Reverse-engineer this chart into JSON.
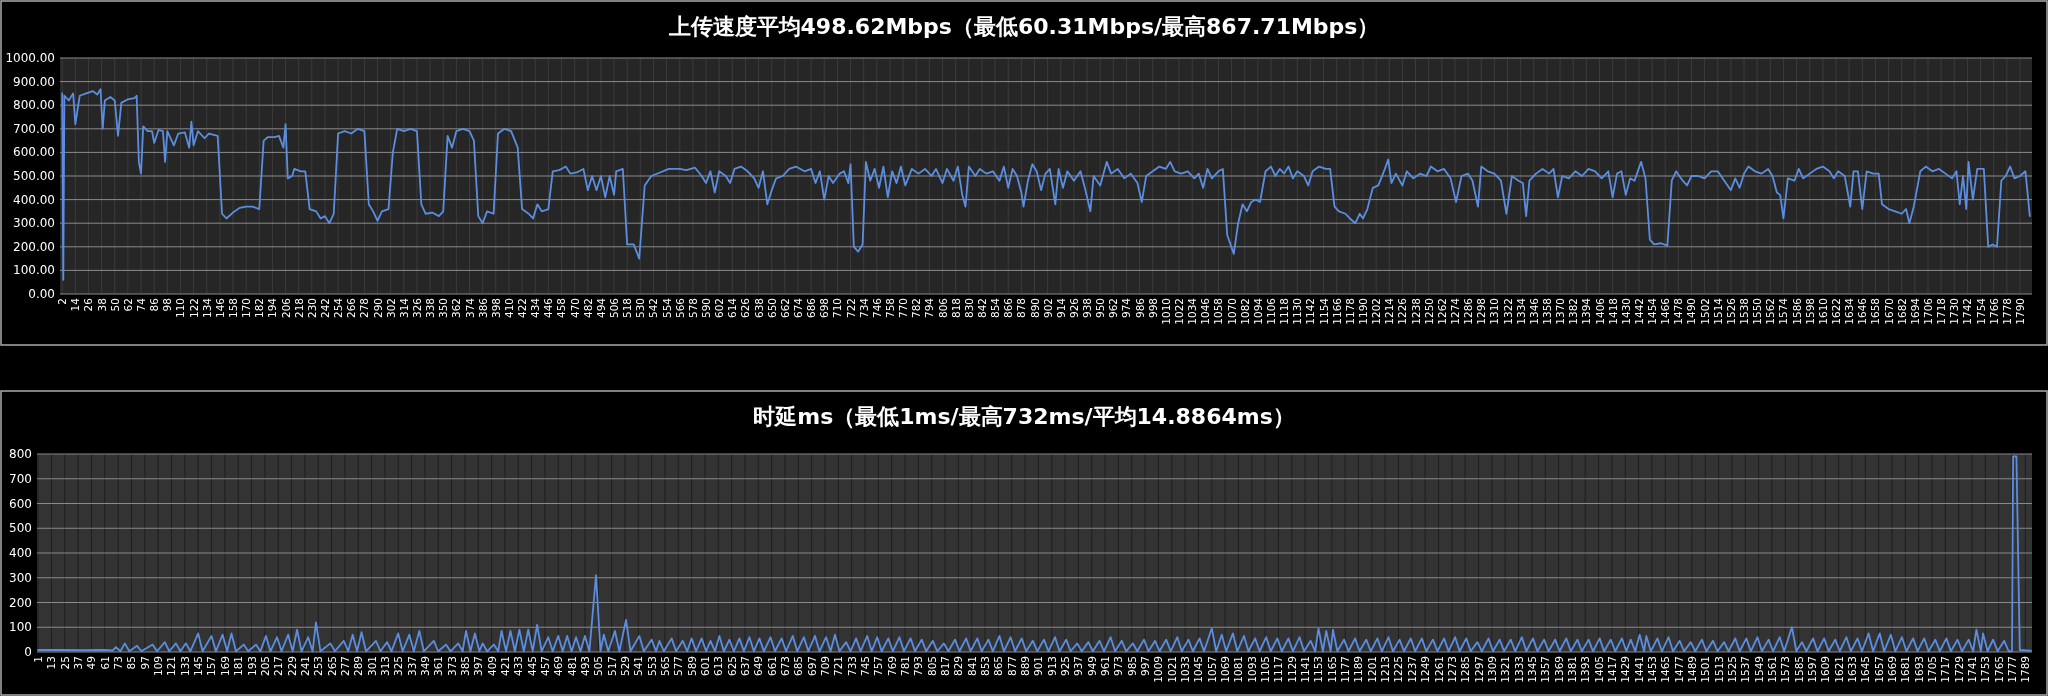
{
  "chart_data": [
    {
      "type": "line",
      "title": "上传速度平均498.62Mbps（最低60.31Mbps/最高867.71Mbps）",
      "grid": true,
      "xlim": [
        0,
        1801
      ],
      "xticks": [
        2,
        14,
        26,
        38,
        50,
        62,
        74,
        86,
        98,
        110,
        122,
        134,
        146,
        158,
        170,
        182,
        194,
        206,
        218,
        230,
        242,
        254,
        266,
        278,
        290,
        302,
        314,
        326,
        338,
        350,
        362,
        374,
        386,
        398,
        410,
        422,
        434,
        446,
        458,
        470,
        482,
        494,
        506,
        518,
        530,
        542,
        554,
        566,
        578,
        590,
        602,
        614,
        626,
        638,
        650,
        662,
        674,
        686,
        698,
        710,
        722,
        734,
        746,
        758,
        770,
        782,
        794,
        806,
        818,
        830,
        842,
        854,
        866,
        878,
        890,
        902,
        914,
        926,
        938,
        950,
        962,
        974,
        986,
        998,
        1010,
        1022,
        1034,
        1046,
        1058,
        1070,
        1082,
        1094,
        1106,
        1118,
        1130,
        1142,
        1154,
        1166,
        1178,
        1190,
        1202,
        1214,
        1226,
        1238,
        1250,
        1262,
        1274,
        1286,
        1298,
        1310,
        1322,
        1334,
        1346,
        1358,
        1370,
        1382,
        1394,
        1406,
        1418,
        1430,
        1442,
        1454,
        1466,
        1478,
        1490,
        1502,
        1514,
        1526,
        1538,
        1550,
        1562,
        1574,
        1586,
        1598,
        1610,
        1622,
        1634,
        1646,
        1658,
        1670,
        1682,
        1694,
        1706,
        1718,
        1730,
        1742,
        1754,
        1766,
        1778,
        1790
      ],
      "ylim": [
        0,
        1000
      ],
      "yticks": [
        {
          "value": 0,
          "label": "0.00"
        },
        {
          "value": 100,
          "label": "100.00"
        },
        {
          "value": 200,
          "label": "200.00"
        },
        {
          "value": 300,
          "label": "300.00"
        },
        {
          "value": 400,
          "label": "400.00"
        },
        {
          "value": 500,
          "label": "500.00"
        },
        {
          "value": 600,
          "label": "600.00"
        },
        {
          "value": 700,
          "label": "700.00"
        },
        {
          "value": 800,
          "label": "800.00"
        },
        {
          "value": 900,
          "label": "900.00"
        },
        {
          "value": 1000,
          "label": "1000.00"
        }
      ],
      "series": [
        {
          "color": "#5b8ee0",
          "x": [
            2,
            3,
            4,
            8,
            12,
            14,
            18,
            24,
            30,
            34,
            37,
            39,
            41,
            46,
            50,
            53,
            56,
            62,
            68,
            70,
            72,
            74,
            76,
            80,
            84,
            86,
            90,
            94,
            96,
            98,
            104,
            108,
            114,
            118,
            120,
            122,
            126,
            132,
            136,
            144,
            148,
            152,
            158,
            164,
            170,
            176,
            182,
            186,
            190,
            196,
            200,
            204,
            206,
            208,
            212,
            214,
            220,
            224,
            228,
            234,
            238,
            242,
            246,
            250,
            254,
            260,
            266,
            272,
            278,
            282,
            286,
            290,
            294,
            300,
            304,
            308,
            314,
            320,
            326,
            330,
            334,
            340,
            346,
            350,
            354,
            358,
            362,
            368,
            374,
            378,
            382,
            386,
            390,
            396,
            400,
            406,
            412,
            418,
            422,
            428,
            432,
            436,
            440,
            446,
            450,
            456,
            462,
            466,
            472,
            478,
            482,
            486,
            490,
            494,
            498,
            502,
            506,
            508,
            514,
            518,
            524,
            529,
            534,
            540,
            548,
            556,
            566,
            572,
            580,
            586,
            590,
            594,
            598,
            602,
            608,
            612,
            616,
            622,
            628,
            634,
            638,
            642,
            646,
            650,
            654,
            660,
            666,
            672,
            680,
            686,
            690,
            694,
            698,
            702,
            706,
            712,
            716,
            720,
            722,
            725,
            729,
            733,
            736,
            740,
            744,
            748,
            752,
            756,
            760,
            764,
            768,
            772,
            778,
            784,
            790,
            796,
            800,
            806,
            810,
            816,
            820,
            824,
            827,
            830,
            836,
            840,
            846,
            852,
            858,
            862,
            866,
            870,
            874,
            878,
            880,
            884,
            888,
            892,
            896,
            900,
            904,
            909,
            912,
            916,
            920,
            926,
            932,
            936,
            941,
            944,
            950,
            956,
            960,
            966,
            972,
            978,
            984,
            988,
            992,
            998,
            1004,
            1010,
            1014,
            1018,
            1024,
            1030,
            1036,
            1040,
            1044,
            1048,
            1052,
            1058,
            1062,
            1066,
            1072,
            1076,
            1080,
            1084,
            1088,
            1092,
            1096,
            1101,
            1106,
            1110,
            1114,
            1118,
            1122,
            1126,
            1130,
            1136,
            1140,
            1144,
            1150,
            1156,
            1160,
            1164,
            1168,
            1174,
            1178,
            1183,
            1187,
            1190,
            1194,
            1199,
            1204,
            1210,
            1213,
            1216,
            1220,
            1226,
            1230,
            1236,
            1242,
            1248,
            1252,
            1258,
            1264,
            1270,
            1275,
            1280,
            1286,
            1290,
            1295,
            1298,
            1304,
            1310,
            1316,
            1321,
            1326,
            1332,
            1336,
            1339,
            1342,
            1348,
            1354,
            1360,
            1364,
            1368,
            1372,
            1378,
            1384,
            1390,
            1396,
            1402,
            1408,
            1414,
            1418,
            1422,
            1426,
            1430,
            1434,
            1438,
            1444,
            1448,
            1452,
            1456,
            1462,
            1468,
            1472,
            1476,
            1482,
            1486,
            1490,
            1496,
            1502,
            1508,
            1514,
            1520,
            1526,
            1530,
            1534,
            1538,
            1542,
            1548,
            1554,
            1560,
            1564,
            1568,
            1571,
            1574,
            1578,
            1584,
            1588,
            1592,
            1598,
            1604,
            1610,
            1616,
            1620,
            1624,
            1630,
            1635,
            1638,
            1642,
            1646,
            1650,
            1656,
            1661,
            1664,
            1670,
            1676,
            1682,
            1686,
            1689,
            1693,
            1699,
            1704,
            1710,
            1716,
            1722,
            1728,
            1732,
            1735,
            1738,
            1741,
            1743,
            1747,
            1751,
            1757,
            1761,
            1765,
            1769,
            1773,
            1777,
            1781,
            1785,
            1790,
            1795,
            1799
          ],
          "values": [
            850,
            60.31,
            840,
            820,
            850,
            720,
            840,
            850,
            860,
            845,
            867.71,
            700,
            820,
            835,
            820,
            670,
            810,
            825,
            830,
            840,
            560,
            510,
            710,
            690,
            690,
            640,
            695,
            690,
            560,
            690,
            630,
            680,
            685,
            620,
            730,
            630,
            690,
            660,
            680,
            670,
            340,
            320,
            345,
            365,
            370,
            370,
            360,
            650,
            665,
            665,
            670,
            620,
            720,
            490,
            500,
            530,
            520,
            520,
            360,
            350,
            320,
            330,
            300,
            340,
            680,
            690,
            680,
            700,
            690,
            380,
            350,
            310,
            350,
            360,
            600,
            700,
            690,
            700,
            690,
            380,
            340,
            345,
            330,
            350,
            670,
            620,
            690,
            700,
            690,
            650,
            330,
            300,
            350,
            340,
            680,
            700,
            690,
            620,
            360,
            340,
            320,
            380,
            350,
            360,
            520,
            525,
            540,
            510,
            515,
            530,
            440,
            500,
            440,
            500,
            410,
            500,
            420,
            520,
            530,
            210,
            210,
            150,
            460,
            500,
            515,
            530,
            530,
            525,
            535,
            500,
            470,
            520,
            430,
            520,
            500,
            470,
            530,
            540,
            520,
            490,
            450,
            520,
            380,
            440,
            490,
            500,
            530,
            540,
            520,
            530,
            470,
            520,
            400,
            500,
            470,
            510,
            520,
            470,
            550,
            200,
            180,
            210,
            560,
            480,
            530,
            450,
            540,
            410,
            520,
            470,
            540,
            460,
            530,
            510,
            530,
            500,
            530,
            470,
            530,
            480,
            540,
            420,
            370,
            540,
            500,
            530,
            510,
            520,
            480,
            540,
            450,
            530,
            500,
            430,
            370,
            480,
            550,
            520,
            440,
            510,
            530,
            380,
            530,
            450,
            520,
            480,
            520,
            450,
            350,
            500,
            460,
            560,
            510,
            530,
            490,
            510,
            470,
            390,
            500,
            520,
            540,
            530,
            560,
            520,
            510,
            520,
            490,
            510,
            450,
            530,
            490,
            520,
            530,
            250,
            170,
            300,
            380,
            350,
            390,
            400,
            390,
            520,
            540,
            500,
            530,
            510,
            540,
            490,
            520,
            500,
            460,
            520,
            540,
            530,
            530,
            370,
            350,
            340,
            320,
            300,
            340,
            320,
            360,
            450,
            460,
            530,
            570,
            470,
            510,
            460,
            520,
            490,
            510,
            500,
            540,
            520,
            530,
            490,
            390,
            500,
            510,
            480,
            370,
            540,
            520,
            510,
            480,
            340,
            500,
            480,
            470,
            330,
            480,
            510,
            530,
            510,
            530,
            410,
            500,
            490,
            520,
            500,
            530,
            520,
            490,
            520,
            410,
            510,
            520,
            420,
            490,
            480,
            560,
            490,
            230,
            210,
            215,
            205,
            480,
            520,
            480,
            460,
            500,
            500,
            490,
            520,
            520,
            480,
            440,
            490,
            450,
            510,
            540,
            520,
            510,
            530,
            500,
            430,
            420,
            320,
            490,
            480,
            530,
            490,
            510,
            530,
            540,
            520,
            490,
            520,
            500,
            370,
            520,
            520,
            360,
            520,
            510,
            510,
            380,
            360,
            350,
            340,
            360,
            300,
            370,
            520,
            540,
            520,
            530,
            510,
            490,
            520,
            380,
            500,
            360,
            560,
            400,
            530,
            530,
            200,
            210,
            200,
            480,
            500,
            540,
            490,
            500,
            520,
            330
          ]
        }
      ]
    },
    {
      "type": "line",
      "title": "时延ms（最低1ms/最高732ms/平均14.8864ms）",
      "grid": true,
      "xlim": [
        0,
        1795
      ],
      "xticks": [
        1,
        13,
        25,
        37,
        49,
        61,
        73,
        85,
        97,
        109,
        121,
        133,
        145,
        157,
        169,
        181,
        193,
        205,
        217,
        229,
        241,
        253,
        265,
        277,
        289,
        301,
        313,
        325,
        337,
        349,
        361,
        373,
        385,
        397,
        409,
        421,
        433,
        445,
        457,
        469,
        481,
        493,
        505,
        517,
        529,
        541,
        553,
        565,
        577,
        589,
        601,
        613,
        625,
        637,
        649,
        661,
        673,
        685,
        697,
        709,
        721,
        733,
        745,
        757,
        769,
        781,
        793,
        805,
        817,
        829,
        841,
        853,
        865,
        877,
        889,
        901,
        913,
        925,
        937,
        949,
        961,
        973,
        985,
        997,
        1009,
        1021,
        1033,
        1045,
        1057,
        1069,
        1081,
        1093,
        1105,
        1117,
        1129,
        1141,
        1153,
        1165,
        1177,
        1189,
        1201,
        1213,
        1225,
        1237,
        1249,
        1261,
        1273,
        1285,
        1297,
        1309,
        1321,
        1333,
        1345,
        1357,
        1369,
        1381,
        1393,
        1405,
        1417,
        1429,
        1441,
        1453,
        1465,
        1477,
        1489,
        1501,
        1513,
        1525,
        1537,
        1549,
        1561,
        1573,
        1585,
        1597,
        1609,
        1621,
        1633,
        1645,
        1657,
        1669,
        1681,
        1693,
        1705,
        1717,
        1729,
        1741,
        1753,
        1765,
        1777,
        1789
      ],
      "ylim": [
        0,
        800
      ],
      "yticks": [
        0,
        100,
        200,
        300,
        400,
        500,
        600,
        700,
        800
      ],
      "series": [
        {
          "color": "#5b8ee0",
          "x": [
            1,
            20,
            40,
            60,
            68,
            71,
            75,
            79,
            83,
            90,
            94,
            104,
            108,
            115,
            119,
            125,
            129,
            134,
            138,
            145,
            149,
            157,
            161,
            167,
            171,
            175,
            179,
            186,
            190,
            197,
            201,
            206,
            210,
            216,
            220,
            226,
            230,
            234,
            238,
            244,
            248,
            251,
            255,
            264,
            268,
            276,
            280,
            284,
            288,
            292,
            296,
            305,
            309,
            315,
            319,
            325,
            329,
            335,
            339,
            344,
            348,
            357,
            361,
            368,
            372,
            379,
            383,
            386,
            390,
            394,
            398,
            401,
            405,
            411,
            415,
            418,
            422,
            426,
            430,
            434,
            438,
            442,
            446,
            450,
            454,
            460,
            464,
            469,
            473,
            477,
            481,
            485,
            489,
            493,
            497,
            503,
            507,
            510,
            514,
            520,
            524,
            530,
            534,
            542,
            546,
            553,
            557,
            560,
            564,
            571,
            575,
            581,
            585,
            589,
            593,
            598,
            602,
            606,
            610,
            614,
            618,
            623,
            627,
            632,
            636,
            641,
            645,
            650,
            654,
            660,
            664,
            670,
            674,
            680,
            684,
            690,
            694,
            700,
            704,
            710,
            714,
            718,
            722,
            728,
            732,
            737,
            741,
            747,
            751,
            756,
            760,
            766,
            770,
            776,
            780,
            786,
            790,
            796,
            800,
            806,
            810,
            816,
            820,
            826,
            830,
            836,
            840,
            846,
            850,
            856,
            860,
            866,
            870,
            876,
            880,
            886,
            890,
            896,
            900,
            906,
            910,
            916,
            920,
            926,
            930,
            936,
            940,
            946,
            950,
            956,
            960,
            966,
            970,
            976,
            980,
            986,
            990,
            996,
            1000,
            1006,
            1010,
            1016,
            1020,
            1026,
            1030,
            1036,
            1040,
            1046,
            1050,
            1057,
            1061,
            1066,
            1070,
            1076,
            1080,
            1086,
            1090,
            1096,
            1100,
            1106,
            1110,
            1116,
            1120,
            1126,
            1130,
            1136,
            1140,
            1146,
            1150,
            1153,
            1157,
            1160,
            1164,
            1166,
            1170,
            1176,
            1180,
            1186,
            1190,
            1196,
            1200,
            1206,
            1210,
            1216,
            1220,
            1226,
            1230,
            1236,
            1240,
            1246,
            1250,
            1256,
            1260,
            1266,
            1270,
            1276,
            1280,
            1286,
            1290,
            1296,
            1300,
            1306,
            1310,
            1316,
            1320,
            1326,
            1330,
            1336,
            1340,
            1346,
            1350,
            1356,
            1360,
            1366,
            1370,
            1376,
            1380,
            1386,
            1390,
            1396,
            1400,
            1406,
            1410,
            1416,
            1420,
            1426,
            1430,
            1434,
            1438,
            1442,
            1446,
            1448,
            1452,
            1458,
            1462,
            1468,
            1472,
            1478,
            1482,
            1488,
            1492,
            1498,
            1502,
            1508,
            1512,
            1518,
            1522,
            1528,
            1532,
            1538,
            1542,
            1548,
            1552,
            1558,
            1562,
            1568,
            1572,
            1579,
            1583,
            1588,
            1592,
            1598,
            1602,
            1608,
            1612,
            1618,
            1622,
            1628,
            1632,
            1638,
            1642,
            1648,
            1652,
            1658,
            1662,
            1668,
            1672,
            1678,
            1682,
            1688,
            1692,
            1698,
            1702,
            1708,
            1712,
            1718,
            1722,
            1728,
            1732,
            1738,
            1742,
            1745,
            1749,
            1751,
            1755,
            1760,
            1764,
            1770,
            1774,
            1777,
            1778,
            1781,
            1784,
            1794
          ],
          "values": [
            8,
            8,
            7,
            8,
            6,
            20,
            3,
            35,
            3,
            25,
            3,
            30,
            3,
            40,
            3,
            35,
            3,
            35,
            3,
            75,
            3,
            65,
            3,
            70,
            3,
            75,
            3,
            30,
            3,
            30,
            3,
            65,
            3,
            60,
            3,
            70,
            3,
            90,
            3,
            60,
            3,
            120,
            3,
            35,
            3,
            45,
            3,
            70,
            3,
            80,
            3,
            45,
            3,
            40,
            3,
            75,
            3,
            70,
            3,
            85,
            3,
            45,
            3,
            30,
            3,
            35,
            3,
            85,
            3,
            75,
            3,
            35,
            3,
            30,
            3,
            85,
            3,
            85,
            3,
            90,
            3,
            90,
            3,
            110,
            3,
            60,
            3,
            65,
            3,
            65,
            3,
            60,
            3,
            65,
            3,
            310,
            3,
            70,
            3,
            85,
            3,
            130,
            3,
            65,
            3,
            50,
            3,
            45,
            3,
            55,
            3,
            45,
            3,
            55,
            3,
            55,
            3,
            45,
            3,
            65,
            3,
            50,
            3,
            55,
            3,
            60,
            3,
            55,
            3,
            60,
            3,
            55,
            3,
            65,
            3,
            60,
            3,
            65,
            3,
            60,
            3,
            70,
            3,
            40,
            3,
            55,
            3,
            65,
            3,
            60,
            3,
            55,
            3,
            60,
            3,
            55,
            3,
            50,
            3,
            45,
            3,
            35,
            3,
            50,
            3,
            55,
            3,
            55,
            3,
            50,
            3,
            65,
            3,
            60,
            3,
            55,
            3,
            45,
            3,
            50,
            3,
            60,
            3,
            50,
            3,
            35,
            3,
            40,
            3,
            45,
            3,
            60,
            3,
            45,
            3,
            35,
            3,
            50,
            3,
            45,
            3,
            50,
            3,
            60,
            3,
            50,
            3,
            55,
            3,
            95,
            3,
            70,
            3,
            75,
            3,
            65,
            3,
            55,
            3,
            60,
            3,
            55,
            3,
            55,
            3,
            60,
            3,
            45,
            3,
            95,
            3,
            85,
            3,
            90,
            3,
            50,
            3,
            55,
            3,
            50,
            3,
            55,
            3,
            60,
            3,
            50,
            3,
            55,
            3,
            55,
            3,
            50,
            3,
            55,
            3,
            60,
            3,
            55,
            3,
            40,
            3,
            55,
            3,
            50,
            3,
            50,
            3,
            60,
            3,
            55,
            3,
            50,
            3,
            50,
            3,
            55,
            3,
            50,
            3,
            50,
            3,
            55,
            3,
            50,
            3,
            55,
            3,
            50,
            3,
            70,
            3,
            65,
            3,
            55,
            3,
            60,
            3,
            45,
            3,
            40,
            3,
            50,
            3,
            45,
            3,
            40,
            3,
            55,
            3,
            55,
            3,
            60,
            3,
            50,
            3,
            60,
            3,
            100,
            3,
            40,
            3,
            55,
            3,
            55,
            3,
            50,
            3,
            60,
            3,
            55,
            3,
            75,
            3,
            75,
            3,
            70,
            3,
            60,
            3,
            55,
            3,
            55,
            3,
            50,
            3,
            55,
            3,
            50,
            3,
            50,
            3,
            90,
            3,
            75,
            3,
            50,
            3,
            45,
            3,
            3,
            790,
            790,
            8,
            5
          ]
        }
      ]
    }
  ]
}
